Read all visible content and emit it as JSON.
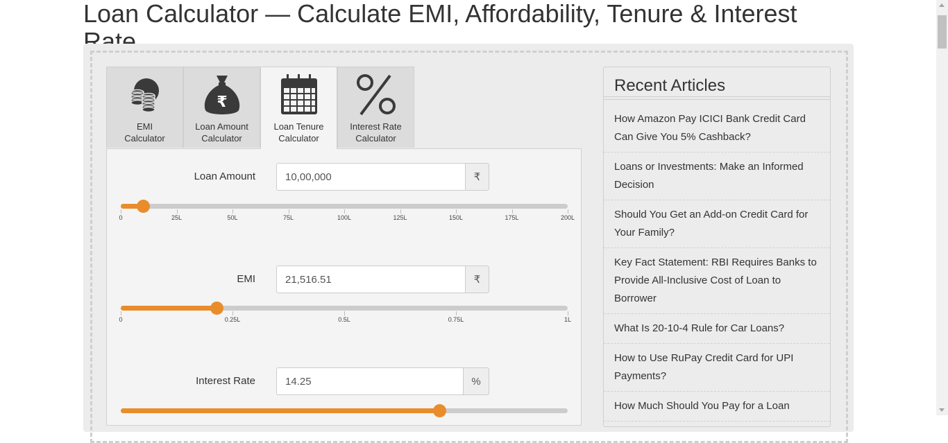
{
  "page": {
    "title": "Loan Calculator — Calculate EMI, Affordability, Tenure & Interest Rate"
  },
  "tabs": [
    {
      "label_line1": "EMI",
      "label_line2": "Calculator",
      "icon": "coins-icon",
      "active": false
    },
    {
      "label_line1": "Loan Amount",
      "label_line2": "Calculator",
      "icon": "money-bag-icon",
      "active": false
    },
    {
      "label_line1": "Loan Tenure",
      "label_line2": "Calculator",
      "icon": "calendar-icon",
      "active": true
    },
    {
      "label_line1": "Interest Rate",
      "label_line2": "Calculator",
      "icon": "percent-icon",
      "active": false
    }
  ],
  "fields": {
    "loan_amount": {
      "label": "Loan Amount",
      "value": "10,00,000",
      "unit": "₹",
      "slider": {
        "fraction": 0.05,
        "ticks": [
          "0",
          "25L",
          "50L",
          "75L",
          "100L",
          "125L",
          "150L",
          "175L",
          "200L"
        ]
      }
    },
    "emi": {
      "label": "EMI",
      "value": "21,516.51",
      "unit": "₹",
      "slider": {
        "fraction": 0.215,
        "ticks": [
          "0",
          "0.25L",
          "0.5L",
          "0.75L",
          "1L"
        ]
      }
    },
    "interest_rate": {
      "label": "Interest Rate",
      "value": "14.25",
      "unit": "%",
      "slider": {
        "fraction": 0.713
      }
    }
  },
  "sidebar": {
    "title": "Recent Articles",
    "articles": [
      "How Amazon Pay ICICI Bank Credit Card Can Give You 5% Cashback?",
      "Loans or Investments: Make an Informed Decision",
      "Should You Get an Add-on Credit Card for Your Family?",
      "Key Fact Statement: RBI Requires Banks to Provide All-Inclusive Cost of Loan to Borrower",
      "What Is 20-10-4 Rule for Car Loans?",
      "How to Use RuPay Credit Card for UPI Payments?",
      "How Much Should You Pay for a Loan"
    ]
  },
  "colors": {
    "accent": "#e98c2b",
    "track": "#cccccc",
    "panel": "#ececec"
  }
}
